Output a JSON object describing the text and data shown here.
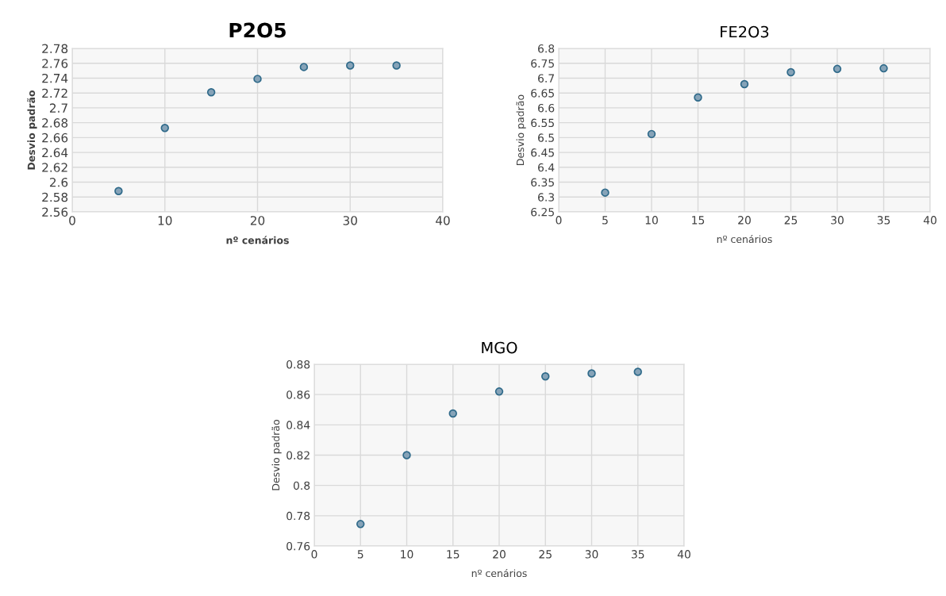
{
  "chart_data": [
    {
      "type": "scatter",
      "title": "P2O5",
      "xlabel": "nº cenários",
      "ylabel": "Desvio padrão",
      "x": [
        5,
        10,
        15,
        20,
        25,
        30,
        35
      ],
      "series": [
        {
          "color": "#86a3b8",
          "values": [
            2.588,
            2.673,
            2.721,
            2.739,
            2.755,
            2.757,
            2.757
          ]
        }
      ],
      "xlim": [
        0,
        40
      ],
      "xticks": [
        0,
        10,
        20,
        30,
        40
      ],
      "ylim": [
        2.56,
        2.78
      ],
      "yticks": [
        2.56,
        2.58,
        2.6,
        2.62,
        2.64,
        2.66,
        2.68,
        2.7,
        2.72,
        2.74,
        2.76,
        2.78
      ],
      "grid": true,
      "marker": "circle"
    },
    {
      "type": "scatter",
      "title": "FE2O3",
      "xlabel": "nº cenários",
      "ylabel": "Desvio padrão",
      "x": [
        5,
        10,
        15,
        20,
        25,
        30,
        35
      ],
      "series": [
        {
          "color": "#86a3b8",
          "values": [
            6.315,
            6.512,
            6.635,
            6.68,
            6.72,
            6.731,
            6.733
          ]
        }
      ],
      "xlim": [
        0,
        40
      ],
      "xticks": [
        0,
        5,
        10,
        15,
        20,
        25,
        30,
        35,
        40
      ],
      "ylim": [
        6.25,
        6.8
      ],
      "yticks": [
        6.25,
        6.3,
        6.35,
        6.4,
        6.45,
        6.5,
        6.55,
        6.6,
        6.65,
        6.7,
        6.75,
        6.8
      ],
      "grid": true,
      "marker": "circle"
    },
    {
      "type": "scatter",
      "title": "MGO",
      "xlabel": "nº cenários",
      "ylabel": "Desvio padrão",
      "x": [
        5,
        10,
        15,
        20,
        25,
        30,
        35
      ],
      "series": [
        {
          "color": "#86a3b8",
          "values": [
            0.7745,
            0.82,
            0.8475,
            0.862,
            0.872,
            0.874,
            0.875
          ]
        }
      ],
      "xlim": [
        0,
        40
      ],
      "xticks": [
        0,
        5,
        10,
        15,
        20,
        25,
        30,
        35,
        40
      ],
      "ylim": [
        0.76,
        0.88
      ],
      "yticks": [
        0.76,
        0.78,
        0.8,
        0.82,
        0.84,
        0.86,
        0.88
      ],
      "grid": true,
      "marker": "circle"
    }
  ]
}
